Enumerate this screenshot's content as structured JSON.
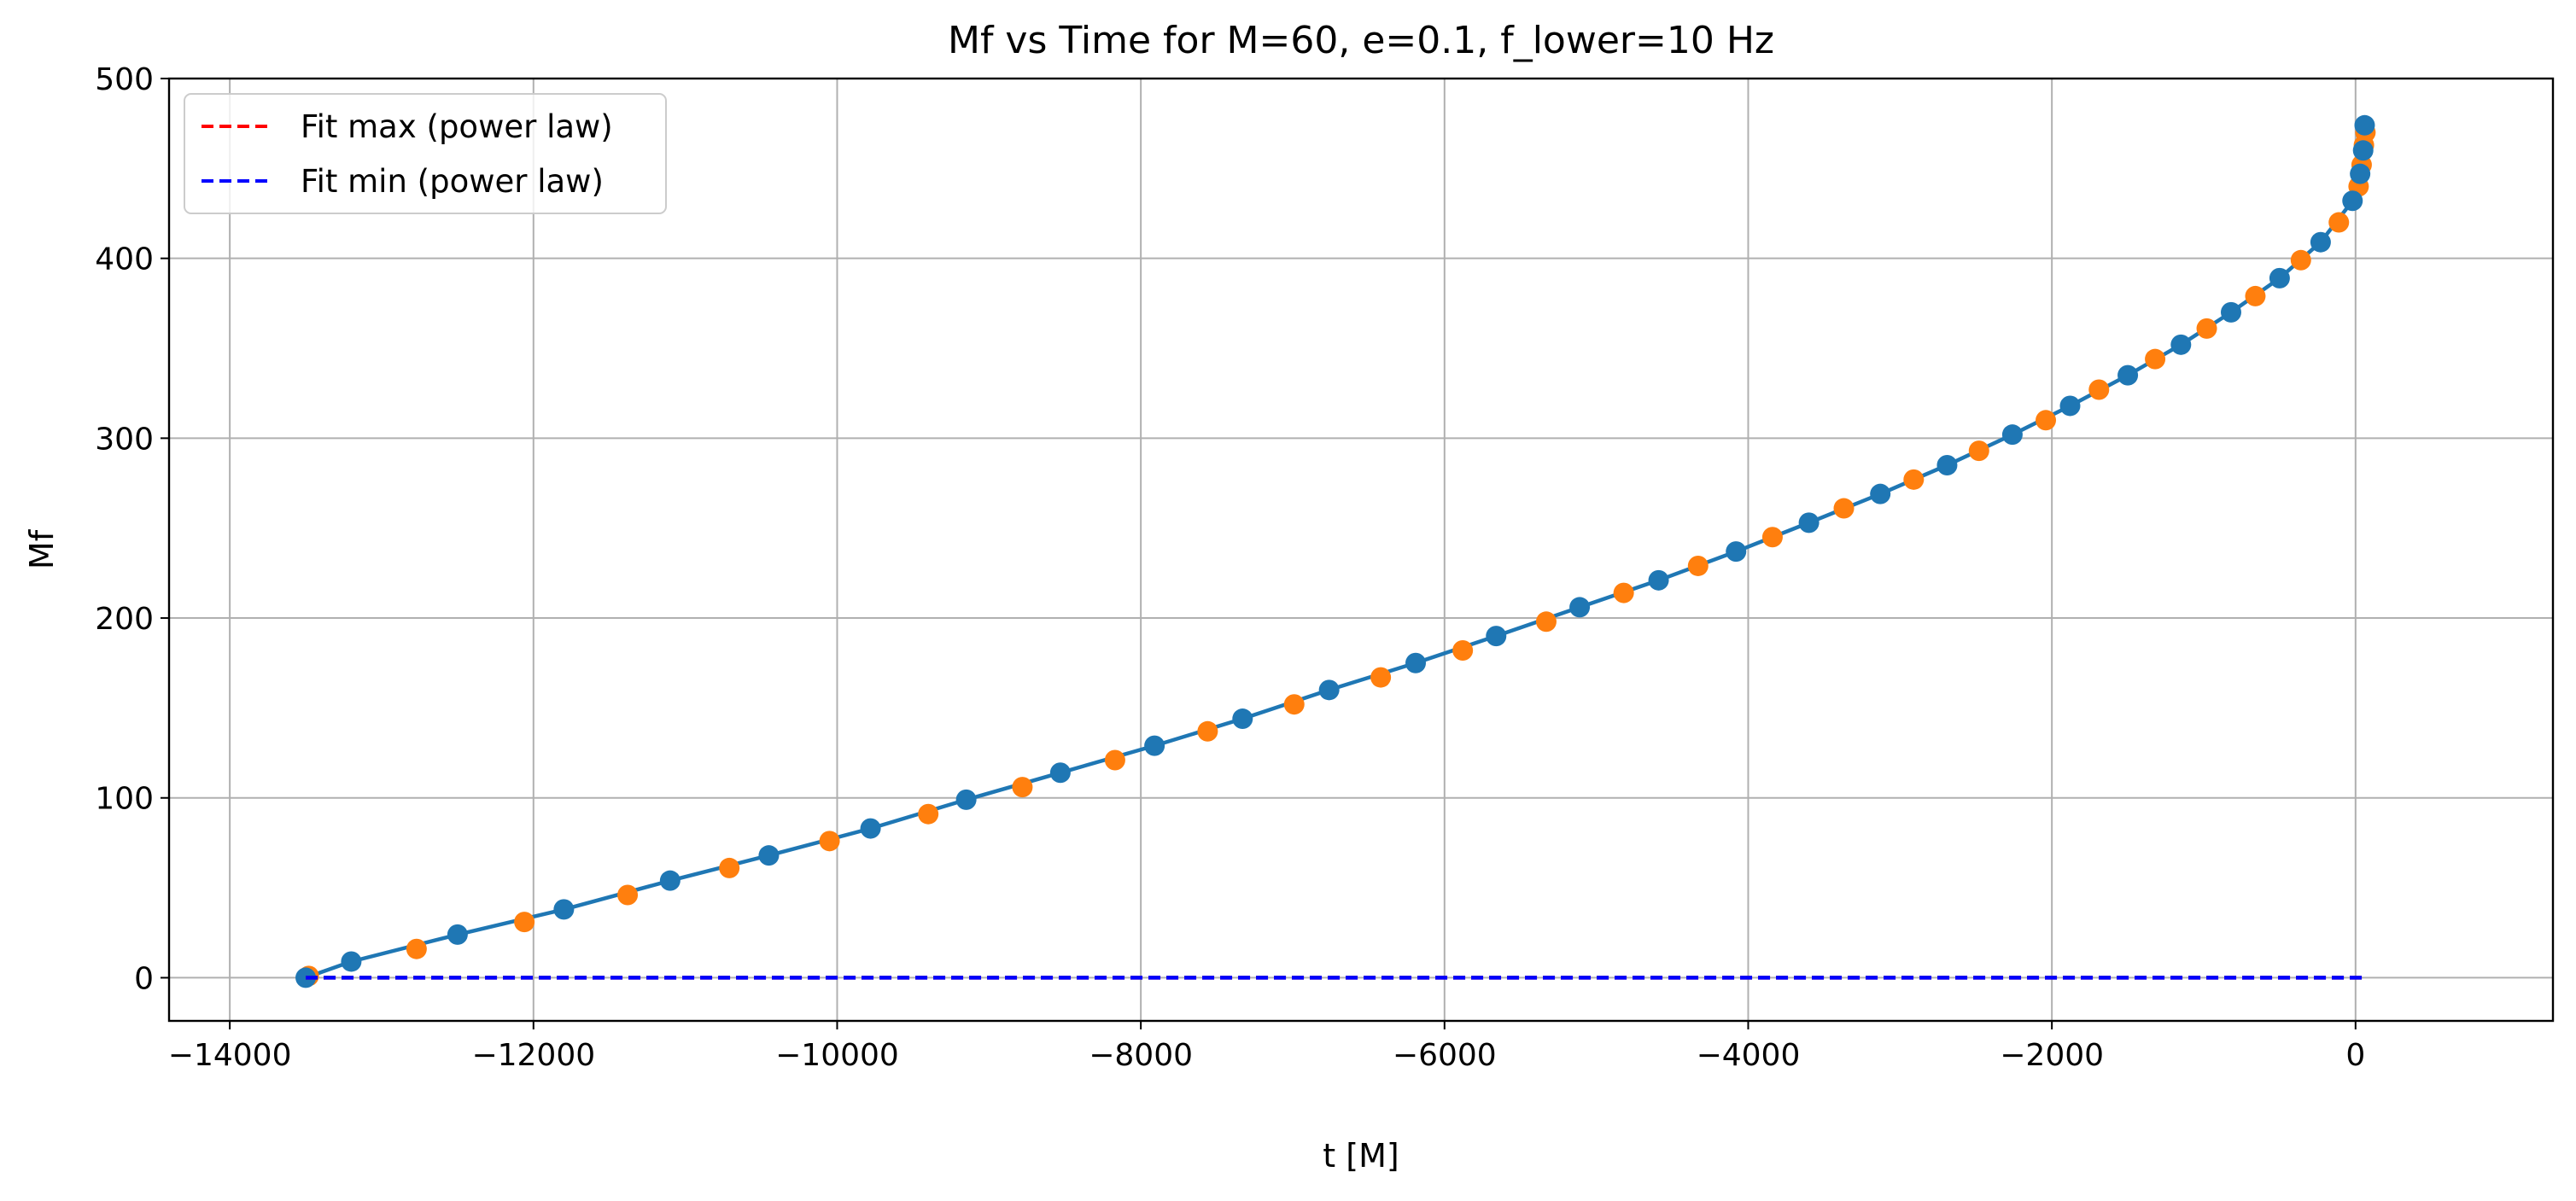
{
  "chart_data": {
    "type": "scatter",
    "title": "Mf vs Time for M=60, e=0.1, f_lower=10 Hz",
    "xlabel": "t [M]",
    "ylabel": "Mf",
    "xlim": [
      -14400,
      1300
    ],
    "ylim": [
      -24,
      500
    ],
    "xticks": [
      -14000,
      -12000,
      -10000,
      -8000,
      -6000,
      -4000,
      -2000,
      0
    ],
    "xtick_labels": [
      "−14000",
      "−12000",
      "−10000",
      "−8000",
      "−6000",
      "−4000",
      "−2000",
      "0"
    ],
    "yticks": [
      0,
      100,
      200,
      300,
      400,
      500
    ],
    "ytick_labels": [
      "0",
      "100",
      "200",
      "300",
      "400",
      "500"
    ],
    "grid": true,
    "legend_position": "top-left",
    "legend": [
      {
        "label": "Fit max (power law)",
        "color": "#ff0000",
        "style": "dashed"
      },
      {
        "label": "Fit min (power law)",
        "color": "#0000ff",
        "style": "dashed"
      }
    ],
    "series": [
      {
        "marker_color": "#1f77b4",
        "line": true,
        "points": [
          [
            -13500,
            0
          ],
          [
            -13200,
            9
          ],
          [
            -12500,
            24
          ],
          [
            -11800,
            38
          ],
          [
            -11100,
            54
          ],
          [
            -10450,
            68
          ],
          [
            -9780,
            83
          ],
          [
            -9150,
            99
          ],
          [
            -8530,
            114
          ],
          [
            -7910,
            129
          ],
          [
            -7330,
            144
          ],
          [
            -6760,
            160
          ],
          [
            -6190,
            175
          ],
          [
            -5660,
            190
          ],
          [
            -5110,
            206
          ],
          [
            -4590,
            221
          ],
          [
            -4080,
            237
          ],
          [
            -3600,
            253
          ],
          [
            -3130,
            269
          ],
          [
            -2690,
            285
          ],
          [
            -2260,
            302
          ],
          [
            -1880,
            318
          ],
          [
            -1500,
            335
          ],
          [
            -1150,
            352
          ],
          [
            -820,
            370
          ],
          [
            -500,
            389
          ],
          [
            -230,
            409
          ],
          [
            -20,
            432
          ],
          [
            30,
            447
          ],
          [
            50,
            460
          ],
          [
            60,
            474
          ]
        ]
      },
      {
        "marker_color": "#ff7f0e",
        "line": false,
        "points": [
          [
            -13480,
            1
          ],
          [
            -12770,
            16
          ],
          [
            -12060,
            31
          ],
          [
            -11380,
            46
          ],
          [
            -10710,
            61
          ],
          [
            -10050,
            76
          ],
          [
            -9400,
            91
          ],
          [
            -8780,
            106
          ],
          [
            -8170,
            121
          ],
          [
            -7560,
            137
          ],
          [
            -6990,
            152
          ],
          [
            -6420,
            167
          ],
          [
            -5880,
            182
          ],
          [
            -5330,
            198
          ],
          [
            -4820,
            214
          ],
          [
            -4330,
            229
          ],
          [
            -3840,
            245
          ],
          [
            -3370,
            261
          ],
          [
            -2910,
            277
          ],
          [
            -2480,
            293
          ],
          [
            -2040,
            310
          ],
          [
            -1690,
            327
          ],
          [
            -1320,
            344
          ],
          [
            -980,
            361
          ],
          [
            -660,
            379
          ],
          [
            -360,
            399
          ],
          [
            -110,
            420
          ],
          [
            20,
            440
          ],
          [
            40,
            452
          ],
          [
            55,
            463
          ],
          [
            65,
            470
          ]
        ]
      },
      {
        "name": "Fit max (power law)",
        "color": "#ff0000",
        "style": "dashed",
        "x_range": [
          -13500,
          60
        ],
        "y": 0
      },
      {
        "name": "Fit min (power law)",
        "color": "#0000ff",
        "style": "dashed",
        "x_range": [
          -13500,
          60
        ],
        "y": 0
      }
    ]
  }
}
